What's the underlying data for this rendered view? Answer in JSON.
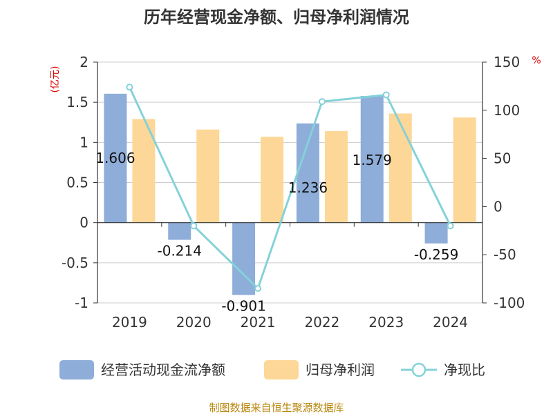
{
  "chart_data": {
    "type": "bar",
    "title": "历年经营现金净额、归母净利润情况",
    "categories": [
      "2019",
      "2020",
      "2021",
      "2022",
      "2023",
      "2024"
    ],
    "left_axis": {
      "unit": "(亿元)",
      "ylim": [
        -1,
        2
      ],
      "ticks": [
        2,
        1.5,
        1,
        0.5,
        0,
        -0.5,
        -1
      ],
      "tick_labels": [
        "2",
        "1.5",
        "1",
        "0.5",
        "0",
        "-0.5",
        "-1"
      ]
    },
    "right_axis": {
      "unit": "%",
      "ylim": [
        -100,
        150
      ],
      "ticks": [
        150,
        100,
        50,
        0,
        -50,
        -100
      ],
      "tick_labels": [
        "150",
        "100",
        "50",
        "0",
        "-50",
        "-100"
      ]
    },
    "series": [
      {
        "name": "经营活动现金流净额",
        "type": "bar",
        "axis": "left",
        "color": "#8eadd9",
        "values": [
          1.606,
          -0.214,
          -0.901,
          1.236,
          1.579,
          -0.259
        ],
        "labels": [
          "1.606",
          "-0.214",
          "-0.901",
          "1.236",
          "1.579",
          "-0.259"
        ]
      },
      {
        "name": "归母净利润",
        "type": "bar",
        "axis": "left",
        "color": "#fdd797",
        "values": [
          1.29,
          1.16,
          1.07,
          1.14,
          1.36,
          1.31
        ]
      },
      {
        "name": "净现比",
        "type": "line",
        "axis": "right",
        "color": "#84d2d8",
        "values": [
          124,
          -20,
          -85,
          109,
          116,
          -20
        ]
      }
    ],
    "legend_position": "bottom",
    "grid": true
  },
  "source_text": "制图数据来自恒生聚源数据库"
}
